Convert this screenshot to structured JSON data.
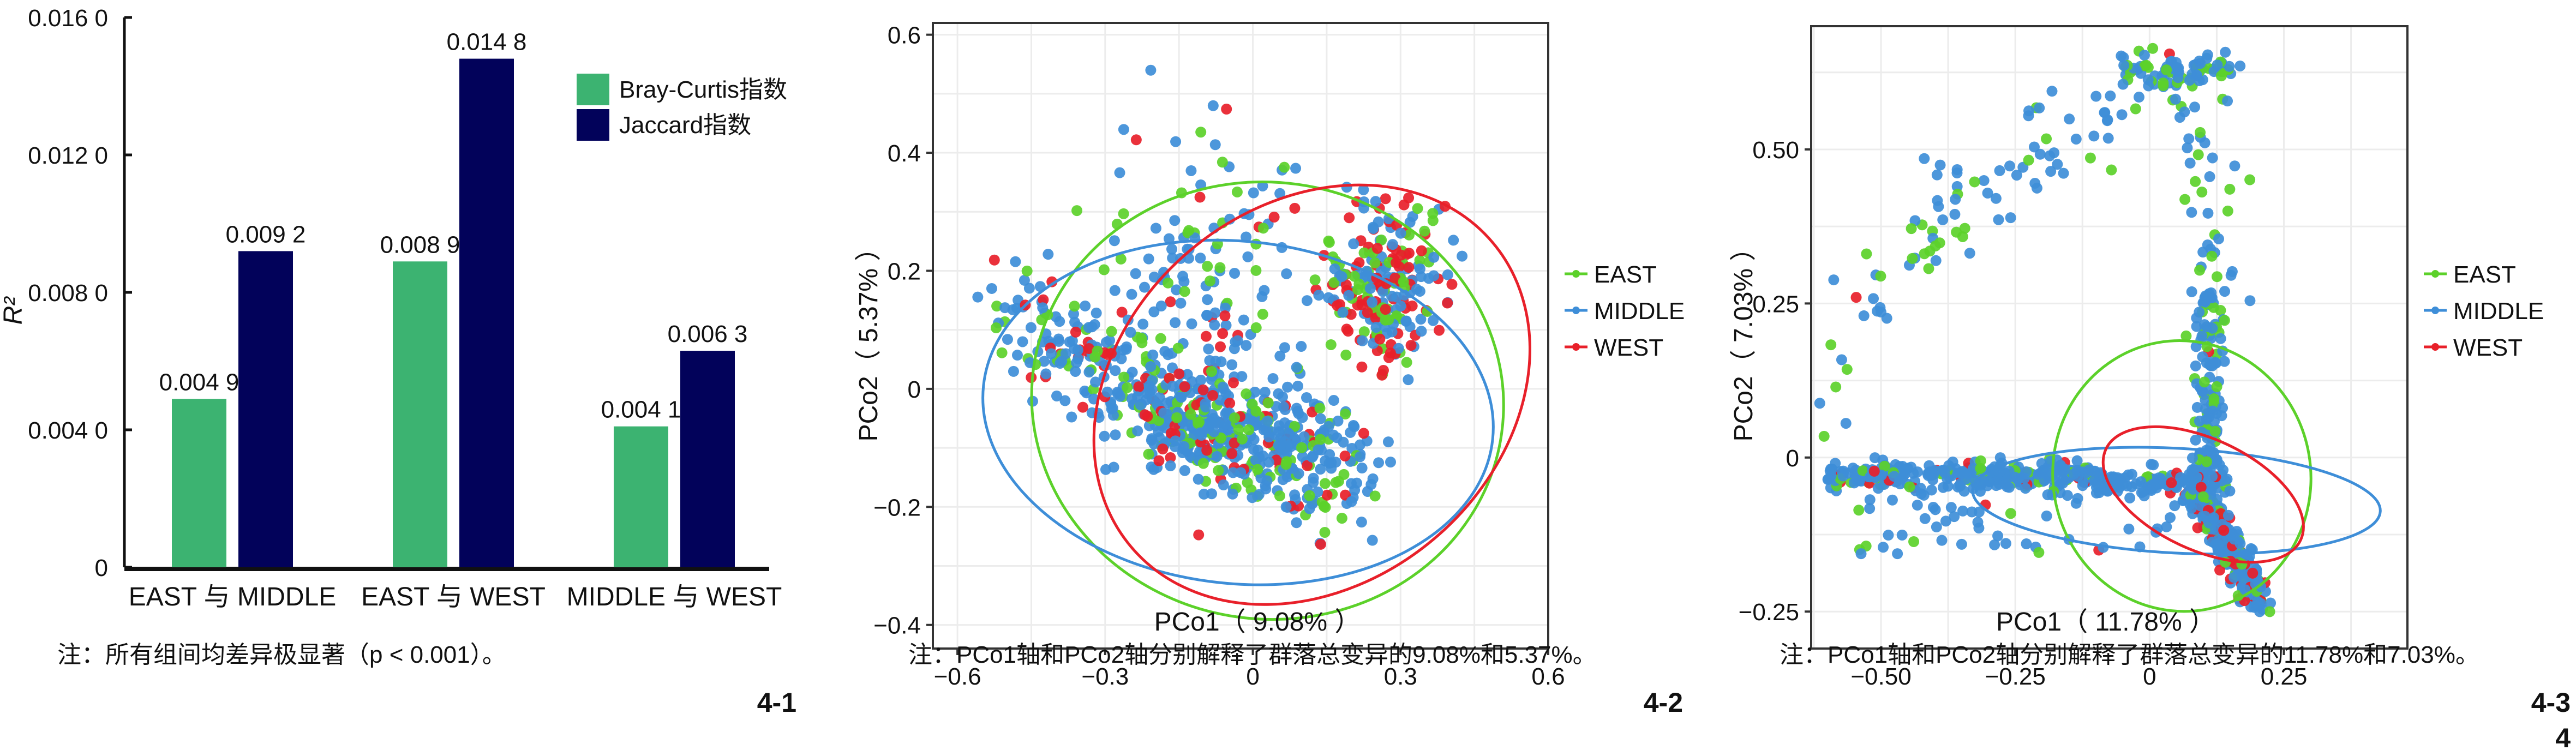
{
  "chart_data": [
    {
      "type": "bar",
      "panel_label": "4-1",
      "title": "",
      "xlabel": "",
      "ylabel": "R²",
      "ylim": [
        0,
        0.016
      ],
      "yticks": [
        0,
        0.004,
        0.008,
        0.012,
        0.016
      ],
      "ytick_labels": [
        "0",
        "0.004 0",
        "0.008 0",
        "0.012 0",
        "0.016 0"
      ],
      "categories": [
        "EAST 与 MIDDLE",
        "EAST 与 WEST",
        "MIDDLE 与 WEST"
      ],
      "series": [
        {
          "name": "Bray-Curtis指数",
          "color": "#3CB371",
          "values": [
            0.0049,
            0.0089,
            0.0041
          ],
          "labels": [
            "0.004 9",
            "0.008 9",
            "0.004 1"
          ]
        },
        {
          "name": "Jaccard指数",
          "color": "#02025A",
          "values": [
            0.0092,
            0.0148,
            0.0063
          ],
          "labels": [
            "0.009 2",
            "0.014 8",
            "0.006 3"
          ]
        }
      ],
      "legend_position": "top-right",
      "grid": false,
      "caption": "注：所有组间均差异极显著（p < 0.001）。"
    },
    {
      "type": "scatter",
      "panel_label": "4-2",
      "xlabel": "PCo1（ 9.08% ）",
      "ylabel": "PCo2（ 5.37% ）",
      "xlim": [
        -0.65,
        0.6
      ],
      "ylim": [
        -0.44,
        0.62
      ],
      "xticks": [
        -0.6,
        -0.3,
        0,
        0.3,
        0.6
      ],
      "xtick_labels": [
        "−0.6",
        "−0.3",
        "0",
        "0.3",
        "0.6"
      ],
      "yticks": [
        -0.4,
        -0.2,
        0,
        0.2,
        0.4,
        0.6
      ],
      "ytick_labels": [
        "−0.4",
        "−0.2",
        "0",
        "0.2",
        "0.4",
        "0.6"
      ],
      "grid": true,
      "legend_position": "right",
      "series": [
        {
          "name": "EAST",
          "color": "#5CD12A"
        },
        {
          "name": "MIDDLE",
          "color": "#3E8ED8"
        },
        {
          "name": "WEST",
          "color": "#E8202A"
        }
      ],
      "ellipses": [
        {
          "series": "EAST",
          "cx": 0.03,
          "cy": -0.02,
          "rx": 0.48,
          "ry": 0.37,
          "angle": -8
        },
        {
          "series": "MIDDLE",
          "cx": -0.03,
          "cy": -0.04,
          "rx": 0.52,
          "ry": 0.29,
          "angle": -6
        },
        {
          "series": "WEST",
          "cx": 0.12,
          "cy": -0.01,
          "rx": 0.48,
          "ry": 0.32,
          "angle": 40
        }
      ],
      "clusters": [
        {
          "cx": -0.33,
          "cy": 0.06,
          "sx": 0.12,
          "sy": 0.07,
          "n": 260
        },
        {
          "cx": 0.08,
          "cy": -0.12,
          "sx": 0.1,
          "sy": 0.06,
          "n": 420
        },
        {
          "cx": 0.27,
          "cy": 0.18,
          "sx": 0.06,
          "sy": 0.07,
          "n": 240
        },
        {
          "cx": -0.1,
          "cy": 0.2,
          "sx": 0.1,
          "sy": 0.12,
          "n": 140
        }
      ],
      "caption": "注：PCo1轴和PCo2轴分别解释了群落总变异的9.08%和5.37%。"
    },
    {
      "type": "scatter",
      "panel_label": "4-3",
      "xlabel": "PCo1（ 11.78% ）",
      "ylabel": "PCo2（ 7.03% ）",
      "xlim": [
        -0.63,
        0.48
      ],
      "ylim": [
        -0.31,
        0.7
      ],
      "xticks": [
        -0.5,
        -0.25,
        0,
        0.25
      ],
      "xtick_labels": [
        "−0.50",
        "−0.25",
        "0",
        "0.25"
      ],
      "yticks": [
        -0.25,
        0,
        0.25,
        0.5
      ],
      "ytick_labels": [
        "−0.25",
        "0",
        "0.25",
        "0.50"
      ],
      "grid": true,
      "legend_position": "right",
      "series": [
        {
          "name": "EAST",
          "color": "#5CD12A"
        },
        {
          "name": "MIDDLE",
          "color": "#3E8ED8"
        },
        {
          "name": "WEST",
          "color": "#E8202A"
        }
      ],
      "ellipses": [
        {
          "series": "EAST",
          "cx": 0.06,
          "cy": -0.03,
          "rx": 0.24,
          "ry": 0.22,
          "angle": 10
        },
        {
          "series": "MIDDLE",
          "cx": 0.05,
          "cy": -0.07,
          "rx": 0.38,
          "ry": 0.085,
          "angle": -3
        },
        {
          "series": "WEST",
          "cx": 0.1,
          "cy": -0.06,
          "rx": 0.2,
          "ry": 0.09,
          "angle": -25
        }
      ],
      "caption": "注：PCo1轴和PCo2轴分别解释了群落总变异的11.78%和7.03%。"
    }
  ],
  "figure_label": "4"
}
